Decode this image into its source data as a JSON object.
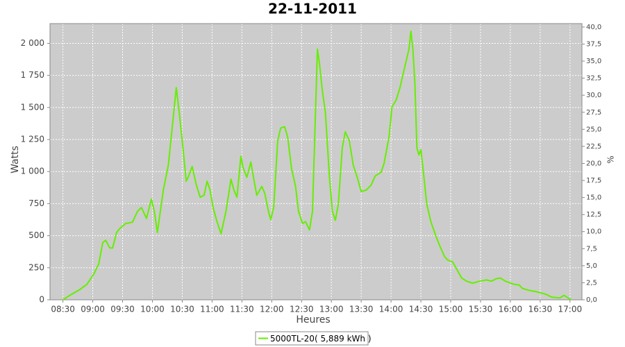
{
  "chart_data": {
    "type": "line",
    "title": "22-11-2011",
    "x_label": "Heures",
    "y_label": "Watts",
    "y2_label": "%",
    "x": [
      "08:30",
      "08:37",
      "08:47",
      "08:54",
      "09:01",
      "09:06",
      "09:10",
      "09:13",
      "09:17",
      "09:20",
      "09:24",
      "09:27",
      "09:33",
      "09:40",
      "09:45",
      "09:49",
      "09:54",
      "09:59",
      "10:02",
      "10:05",
      "10:08",
      "10:11",
      "10:16",
      "10:20",
      "10:24",
      "10:27",
      "10:31",
      "10:34",
      "10:36",
      "10:40",
      "10:44",
      "10:48",
      "10:52",
      "10:55",
      "10:58",
      "11:01",
      "11:05",
      "11:09",
      "11:14",
      "11:19",
      "11:22",
      "11:25",
      "11:29",
      "11:31",
      "11:35",
      "11:39",
      "11:42",
      "11:45",
      "11:50",
      "11:53",
      "11:57",
      "11:59",
      "12:02",
      "12:06",
      "12:09",
      "12:13",
      "12:16",
      "12:20",
      "12:24",
      "12:27",
      "12:31",
      "12:34",
      "12:38",
      "12:41",
      "12:44",
      "12:46",
      "12:48",
      "12:51",
      "12:54",
      "12:58",
      "13:01",
      "13:04",
      "13:07",
      "13:11",
      "13:14",
      "13:18",
      "13:22",
      "13:26",
      "13:30",
      "13:35",
      "13:40",
      "13:44",
      "13:50",
      "13:53",
      "13:58",
      "14:01",
      "14:05",
      "14:09",
      "14:13",
      "14:18",
      "14:20",
      "14:22",
      "14:24",
      "14:26",
      "14:28",
      "14:30",
      "14:33",
      "14:36",
      "14:40",
      "14:45",
      "14:49",
      "14:54",
      "14:57",
      "15:02",
      "15:06",
      "15:11",
      "15:16",
      "15:22",
      "15:29",
      "15:36",
      "15:41",
      "15:46",
      "15:50",
      "15:55",
      "16:04",
      "16:09",
      "16:12",
      "16:18",
      "16:25",
      "16:35",
      "16:42",
      "16:50",
      "16:54",
      "16:58",
      "17:01"
    ],
    "series": [
      {
        "name": "5000TL-20( 5,889 kWh )",
        "color": "#66ee00",
        "values": [
          0,
          35,
          80,
          120,
          200,
          280,
          445,
          465,
          405,
          405,
          525,
          555,
          595,
          605,
          690,
          720,
          635,
          785,
          690,
          525,
          690,
          855,
          1050,
          1350,
          1655,
          1460,
          1160,
          925,
          955,
          1040,
          900,
          800,
          815,
          925,
          855,
          720,
          610,
          515,
          690,
          940,
          855,
          800,
          1120,
          1035,
          955,
          1075,
          940,
          815,
          885,
          830,
          680,
          625,
          720,
          1240,
          1340,
          1350,
          1270,
          1020,
          885,
          690,
          595,
          610,
          545,
          690,
          1460,
          1955,
          1845,
          1625,
          1460,
          965,
          690,
          620,
          745,
          1185,
          1310,
          1240,
          1050,
          955,
          845,
          855,
          895,
          965,
          995,
          1065,
          1270,
          1505,
          1555,
          1655,
          1790,
          1955,
          2095,
          1955,
          1680,
          1185,
          1130,
          1170,
          965,
          745,
          610,
          500,
          420,
          335,
          310,
          295,
          240,
          170,
          145,
          130,
          145,
          155,
          145,
          165,
          170,
          145,
          120,
          115,
          90,
          75,
          65,
          45,
          20,
          15,
          35,
          15,
          0
        ]
      }
    ],
    "xlim": [
      "08:17",
      "17:12"
    ],
    "xticks": [
      "08:30",
      "09:00",
      "09:30",
      "10:00",
      "10:30",
      "11:00",
      "11:30",
      "12:00",
      "12:30",
      "13:00",
      "13:30",
      "14:00",
      "14:30",
      "15:00",
      "15:30",
      "16:00",
      "16:30",
      "17:00"
    ],
    "ylim": [
      0,
      2154
    ],
    "yticks": [
      0,
      250,
      500,
      750,
      {
        "value": 1000,
        "label": "1 000"
      },
      {
        "value": 1250,
        "label": "1 250"
      },
      {
        "value": 1500,
        "label": "1 500"
      },
      {
        "value": 1750,
        "label": "1 750"
      },
      {
        "value": 2000,
        "label": "2 000"
      }
    ],
    "y2lim": [
      0,
      40.5
    ],
    "y2ticks": [
      {
        "value": 0,
        "label": "0,0"
      },
      {
        "value": 2.5,
        "label": "2,5"
      },
      {
        "value": 5,
        "label": "5,0"
      },
      {
        "value": 7.5,
        "label": "7,5"
      },
      {
        "value": 10,
        "label": "10,0"
      },
      {
        "value": 12.5,
        "label": "12,5"
      },
      {
        "value": 15,
        "label": "15,0"
      },
      {
        "value": 17.5,
        "label": "17,5"
      },
      {
        "value": 20,
        "label": "20,0"
      },
      {
        "value": 22.5,
        "label": "22,5"
      },
      {
        "value": 25,
        "label": "25,0"
      },
      {
        "value": 27.5,
        "label": "27,5"
      },
      {
        "value": 30,
        "label": "30,0"
      },
      {
        "value": 32.5,
        "label": "32,5"
      },
      {
        "value": 35,
        "label": "35,0"
      },
      {
        "value": 37.5,
        "label": "37,5"
      },
      {
        "value": 40,
        "label": "40,0"
      }
    ],
    "grid": true,
    "background": "#cccccc"
  }
}
